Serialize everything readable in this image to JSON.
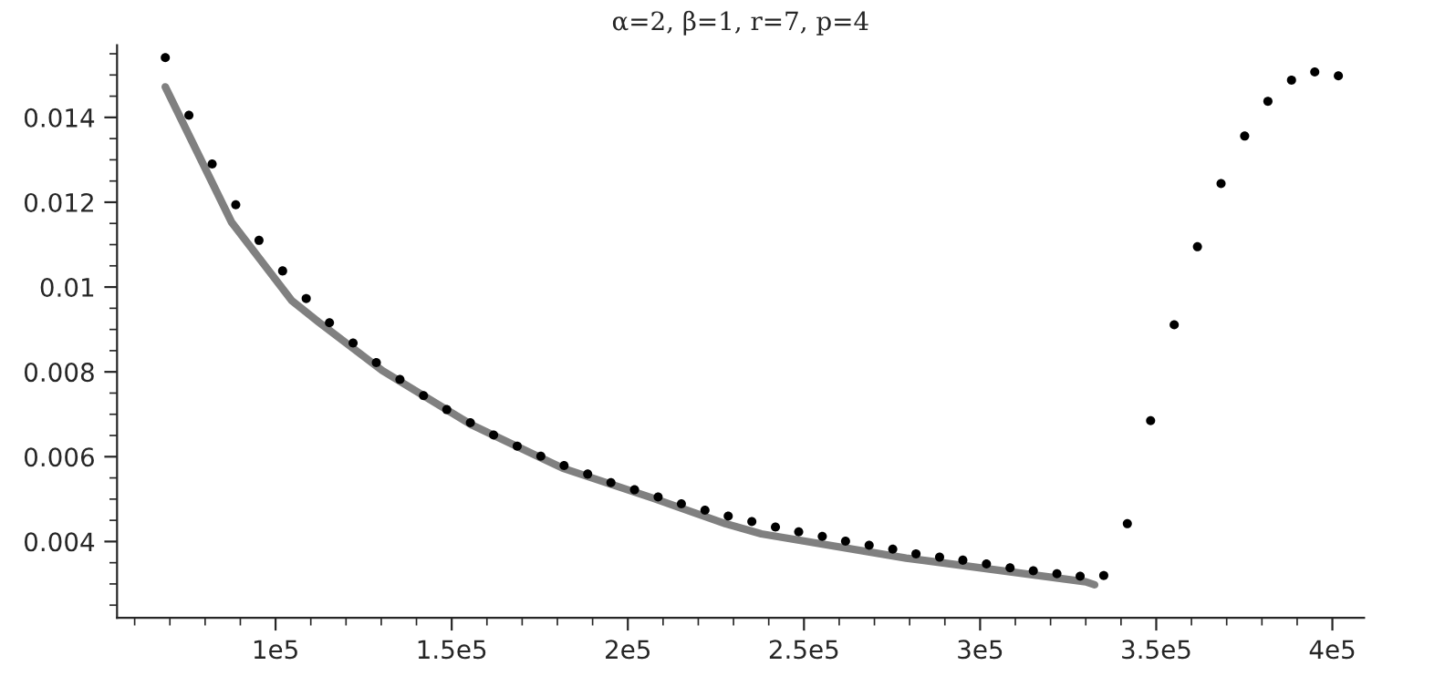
{
  "chart_data": {
    "type": "scatter",
    "title": "α=2, β=1, r=7, p=4",
    "xlim": [
      55000,
      409000
    ],
    "ylim": [
      0.0022,
      0.0157
    ],
    "xticks": [
      {
        "value": 100000,
        "label": "1e5"
      },
      {
        "value": 150000,
        "label": "1.5e5"
      },
      {
        "value": 200000,
        "label": "2e5"
      },
      {
        "value": 250000,
        "label": "2.5e5"
      },
      {
        "value": 300000,
        "label": "3e5"
      },
      {
        "value": 350000,
        "label": "3.5e5"
      },
      {
        "value": 400000,
        "label": "4e5"
      }
    ],
    "yticks": [
      0.004,
      0.006,
      0.008,
      {
        "value": 0.01,
        "label": "0.01"
      },
      0.012,
      0.014
    ],
    "grid": false,
    "legend": false,
    "marker": "circle",
    "series": [
      {
        "color": "#000000",
        "x": [
          68700,
          75400,
          82000,
          88700,
          95300,
          102000,
          108700,
          115300,
          122000,
          128600,
          135300,
          142000,
          148600,
          155300,
          161900,
          168600,
          175300,
          181900,
          188600,
          195200,
          201900,
          208600,
          215200,
          221900,
          228500,
          235200,
          241900,
          248500,
          255200,
          261800,
          268500,
          275200,
          281800,
          288500,
          295100,
          301800,
          308500,
          315100,
          321800,
          328400,
          335100,
          341800,
          348400,
          355100,
          361700,
          368400,
          375100,
          381700,
          388400,
          395000,
          401700
        ],
        "values": [
          0.01541,
          0.01405,
          0.0129,
          0.01194,
          0.0111,
          0.01038,
          0.00973,
          0.00916,
          0.00868,
          0.00822,
          0.00782,
          0.00744,
          0.00711,
          0.0068,
          0.00651,
          0.00625,
          0.00601,
          0.00579,
          0.00559,
          0.00539,
          0.00522,
          0.00505,
          0.00489,
          0.00474,
          0.0046,
          0.00447,
          0.00434,
          0.00423,
          0.00412,
          0.00401,
          0.00391,
          0.00382,
          0.00371,
          0.00363,
          0.00356,
          0.00347,
          0.00338,
          0.00331,
          0.00324,
          0.00318,
          0.0032,
          0.00442,
          0.00685,
          0.00911,
          0.01095,
          0.01244,
          0.01356,
          0.01438,
          0.01488,
          0.01507,
          0.01498
        ]
      },
      {
        "type": "line",
        "color": "#808080",
        "marker": "none",
        "line_style": "solid",
        "x": [
          68700,
          87500,
          104600,
          112300,
          130300,
          155900,
          181500,
          207200,
          227700,
          237900,
          279000,
          330000,
          332500
        ],
        "values": [
          0.01472,
          0.01153,
          0.00968,
          0.00917,
          0.00803,
          0.00674,
          0.00573,
          0.00502,
          0.00442,
          0.00418,
          0.00361,
          0.00305,
          0.00298
        ]
      }
    ]
  }
}
